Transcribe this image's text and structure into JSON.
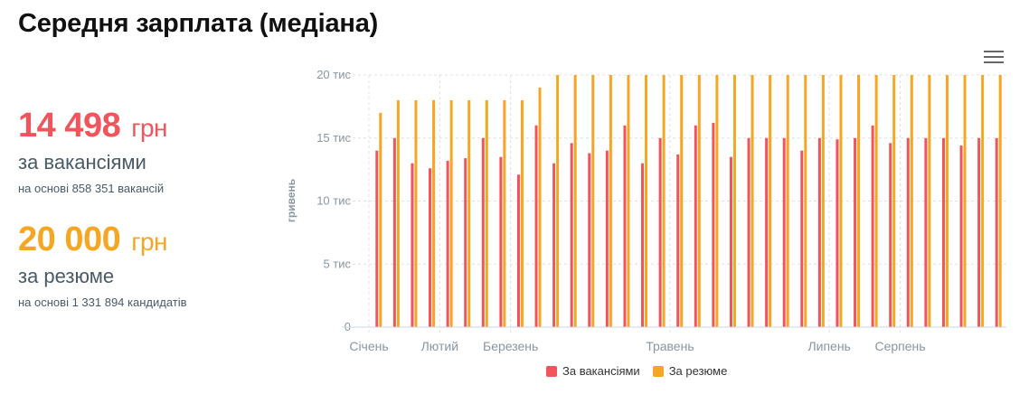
{
  "title": "Середня зарплата (медіана)",
  "stats": [
    {
      "value": "14 498",
      "currency": "грн",
      "label": "за вакансіями",
      "note": "на основі 858 351 вакансій",
      "color": "#f2545b"
    },
    {
      "value": "20 000",
      "currency": "грн",
      "label": "за резюме",
      "note": "на основі 1 331 894 кандидатів",
      "color": "#f5a623"
    }
  ],
  "menu_icon": "hamburger-menu-icon",
  "legend": [
    {
      "name": "За вакансіями",
      "color": "#f2545b"
    },
    {
      "name": "За резюме",
      "color": "#f5a623"
    }
  ],
  "chart_data": {
    "type": "bar",
    "ylabel": "гривень",
    "ylim": [
      0,
      20000
    ],
    "y_ticks": [
      0,
      5000,
      10000,
      15000,
      20000
    ],
    "y_tick_labels": [
      "0",
      "5 тис",
      "10 тис",
      "15 тис",
      "20 тис"
    ],
    "x_month_labels": [
      {
        "label": "Січень",
        "index": 0
      },
      {
        "label": "Лютий",
        "index": 4
      },
      {
        "label": "Березень",
        "index": 8
      },
      {
        "label": "Травень",
        "index": 17
      },
      {
        "label": "Липень",
        "index": 26
      },
      {
        "label": "Серпень",
        "index": 30
      }
    ],
    "series": [
      {
        "name": "За вакансіями",
        "color": "#f2545b",
        "values": [
          14000,
          15000,
          13000,
          12600,
          13200,
          13400,
          15000,
          13500,
          12100,
          16000,
          13000,
          14600,
          13800,
          14000,
          16000,
          13000,
          15000,
          13700,
          16000,
          16200,
          13500,
          15000,
          15000,
          15000,
          14000,
          15000,
          14900,
          15000,
          16000,
          14600,
          15000,
          15000,
          15000,
          14400,
          15000,
          15000
        ]
      },
      {
        "name": "За резюме",
        "color": "#f5a623",
        "values": [
          17000,
          18000,
          18000,
          18000,
          18000,
          18000,
          18000,
          18000,
          18000,
          19000,
          20000,
          20000,
          20000,
          20000,
          20000,
          20000,
          20000,
          20000,
          20000,
          20000,
          20000,
          20000,
          20000,
          20000,
          20000,
          20000,
          20000,
          20000,
          20000,
          20000,
          20000,
          20000,
          20000,
          20000,
          20000,
          20000
        ]
      }
    ]
  }
}
